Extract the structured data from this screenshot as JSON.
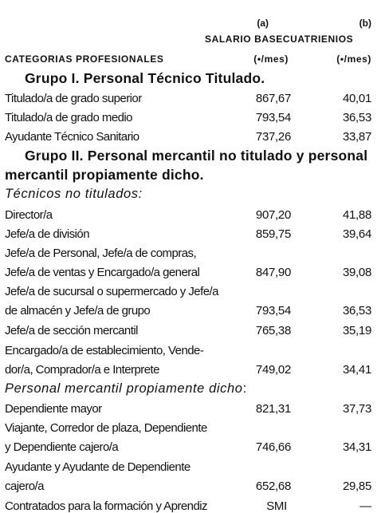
{
  "header": {
    "col_a_mark": "(a)",
    "col_b_mark": "(b)",
    "salario_title": "SALARIO BASECUATRIENIOS",
    "categorias_label": "CATEGORIAS PROFESIONALES",
    "unit_a": "(•/mes)",
    "unit_b": "(•/mes)"
  },
  "group1": {
    "title": "Grupo I. Personal Técnico Titulado.",
    "rows": [
      {
        "label": "Titulado/a de grado superior",
        "a": "867,67",
        "b": "40,01"
      },
      {
        "label": "Titulado/a de grado medio",
        "a": "793,54",
        "b": "36,53"
      },
      {
        "label": "Ayudante Técnico Sanitario",
        "a": "737,26",
        "b": "33,87"
      }
    ]
  },
  "group2": {
    "title_line1": "Grupo II. Personal mercantil no titulado  y personal",
    "title_line2": "mercantil propiamente dicho.",
    "tecnicos_heading": "Técnicos no titulados:",
    "director": {
      "label": "Director/a",
      "a": "907,20",
      "b": "41,88"
    },
    "jefe_division": {
      "label": "Jefe/a de división",
      "a": "859,75",
      "b": "39,64"
    },
    "jefe_personal": {
      "line1": "Jefe/a de Personal, Jefe/a de compras,",
      "line2": "Jefe/a de ventas y Encargado/a general",
      "a": "847,90",
      "b": "39,08"
    },
    "jefe_sucursal": {
      "line1": "Jefe/a de sucursal o supermercado y Jefe/a",
      "line2": "de almacén y Jefe/a de grupo",
      "a": "793,54",
      "b": "36,53"
    },
    "jefe_seccion": {
      "label": "Jefe/a de sección mercantil",
      "a": "765,38",
      "b": "35,19"
    },
    "encargado": {
      "line1": "Encargado/a de establecimiento, Vende-",
      "line2": "dor/a, Comprador/a e Interprete",
      "a": "749,02",
      "b": "34,41"
    },
    "mercantil_heading": "Personal mercantil propiamente dicho",
    "mercantil_colon": ":",
    "dependiente_mayor": {
      "label": "Dependiente mayor",
      "a": "821,31",
      "b": "37,73"
    },
    "viajante": {
      "line1": "Viajante, Corredor de plaza, Dependiente",
      "line2": "y Dependiente cajero/a",
      "a": "746,66",
      "b": "34,31"
    },
    "ayudante": {
      "line1": "Ayudante y Ayudante de Dependiente",
      "line2": "cajero/a",
      "a": "652,68",
      "b": "29,85"
    },
    "contratados": {
      "label": "Contratados para la formación y Aprendiz",
      "a": "SMI",
      "b": "—"
    }
  }
}
